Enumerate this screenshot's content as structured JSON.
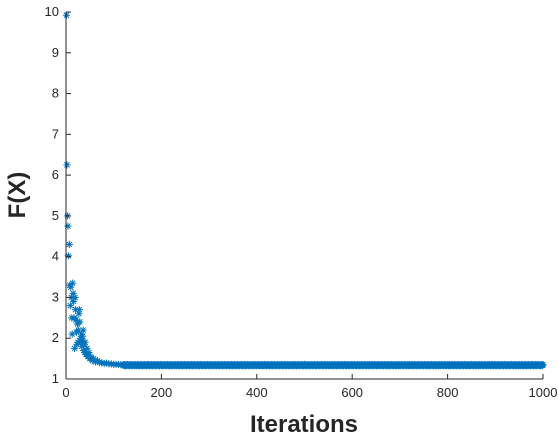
{
  "chart_data": {
    "type": "scatter",
    "marker": "asterisk",
    "color": "#0072BD",
    "xlabel": "Iterations",
    "ylabel": "F(X)",
    "xlim": [
      0,
      1000
    ],
    "ylim": [
      1,
      10
    ],
    "xticks": [
      "0",
      "200",
      "400",
      "600",
      "800",
      "1000"
    ],
    "yticks": [
      "1",
      "2",
      "3",
      "4",
      "5",
      "6",
      "7",
      "8",
      "9",
      "10"
    ],
    "grid": false,
    "series": [
      {
        "early_points": [
          [
            1,
            9.92
          ],
          [
            2,
            6.25
          ],
          [
            3,
            5.0
          ],
          [
            4,
            4.75
          ],
          [
            5,
            4.02
          ],
          [
            7,
            4.3
          ],
          [
            8,
            3.3
          ],
          [
            9,
            2.8
          ],
          [
            10,
            3.25
          ],
          [
            11,
            3.0
          ],
          [
            12,
            2.5
          ],
          [
            13,
            2.1
          ],
          [
            14,
            3.35
          ],
          [
            15,
            3.1
          ],
          [
            16,
            2.9
          ],
          [
            17,
            2.5
          ],
          [
            18,
            1.75
          ],
          [
            19,
            3.0
          ],
          [
            20,
            2.7
          ],
          [
            21,
            2.45
          ],
          [
            22,
            2.15
          ],
          [
            23,
            1.85
          ],
          [
            24,
            2.35
          ],
          [
            25,
            1.9
          ],
          [
            26,
            2.2
          ],
          [
            27,
            2.6
          ],
          [
            28,
            2.7
          ],
          [
            29,
            2.4
          ],
          [
            30,
            2.0
          ],
          [
            31,
            1.9
          ],
          [
            32,
            2.1
          ],
          [
            33,
            1.8
          ],
          [
            34,
            1.95
          ],
          [
            35,
            2.05
          ],
          [
            36,
            2.2
          ],
          [
            37,
            1.7
          ],
          [
            38,
            1.85
          ],
          [
            39,
            1.65
          ],
          [
            40,
            1.9
          ],
          [
            42,
            1.6
          ],
          [
            44,
            1.75
          ],
          [
            46,
            1.55
          ],
          [
            48,
            1.65
          ],
          [
            50,
            1.5
          ],
          [
            52,
            1.55
          ],
          [
            55,
            1.45
          ],
          [
            58,
            1.5
          ],
          [
            62,
            1.42
          ],
          [
            66,
            1.45
          ],
          [
            70,
            1.4
          ],
          [
            75,
            1.4
          ],
          [
            80,
            1.38
          ],
          [
            85,
            1.39
          ],
          [
            90,
            1.37
          ],
          [
            95,
            1.37
          ],
          [
            100,
            1.36
          ],
          [
            105,
            1.36
          ],
          [
            110,
            1.355
          ],
          [
            115,
            1.35
          ],
          [
            120,
            1.35
          ]
        ],
        "plateau": {
          "from": 120,
          "to": 1000,
          "value": 1.34,
          "spread": 0.015
        }
      }
    ]
  }
}
